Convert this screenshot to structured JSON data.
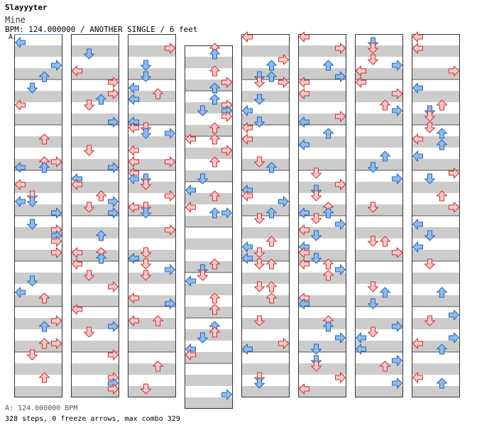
{
  "header": {
    "artist": "Slayyyter",
    "title": "Mine",
    "info": "BPM: 124.000000 / ANOTHER SINGLE / 6 feet"
  },
  "marker": "A",
  "footer": {
    "bpm_line": "A: 124.000000 BPM",
    "stats": "328 steps, 0 freeze arrows, max combo 329"
  },
  "colors": {
    "red_fill": "#ffc8c8",
    "red_stroke": "#c83232",
    "blue_fill": "#8cbcf0",
    "blue_stroke": "#2864b4",
    "stripe": "#cccccc"
  },
  "chart_data": {
    "type": "table",
    "lanes": [
      "left",
      "down",
      "up",
      "right"
    ],
    "columns": 8,
    "measures_per_column": 8,
    "steps": 328,
    "freeze_arrows": 0,
    "max_combo": 329
  }
}
